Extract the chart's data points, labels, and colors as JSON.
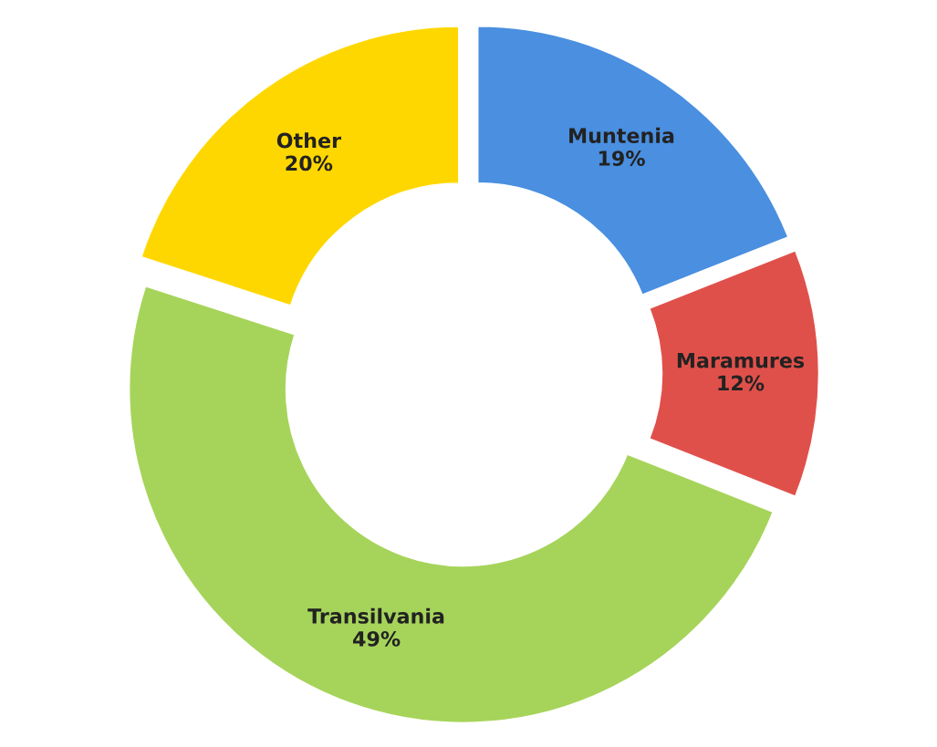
{
  "chart_data": {
    "type": "donut",
    "categories": [
      "Muntenia",
      "Maramures",
      "Transilvania",
      "Other"
    ],
    "values": [
      19,
      12,
      49,
      20
    ],
    "value_labels": [
      "19%",
      "12%",
      "49%",
      "20%"
    ],
    "colors": [
      "#4a8fe0",
      "#e0504a",
      "#a6d45a",
      "#ffd700"
    ]
  }
}
